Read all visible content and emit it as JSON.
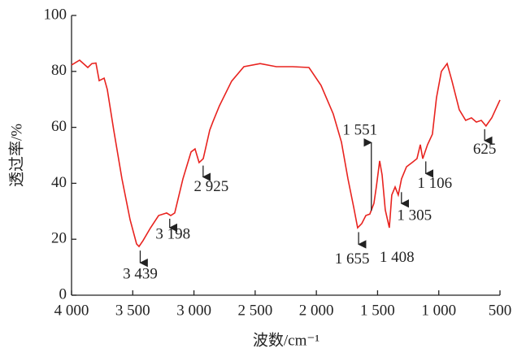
{
  "chart_data": {
    "type": "line",
    "x_label": "波数/cm⁻¹",
    "y_label": "透过率/%",
    "xlim": [
      4000,
      500
    ],
    "ylim": [
      0,
      100
    ],
    "xticks": [
      {
        "value": 4000,
        "label": "4 000"
      },
      {
        "value": 3500,
        "label": "3 500"
      },
      {
        "value": 3000,
        "label": "3 000"
      },
      {
        "value": 2500,
        "label": "2 500"
      },
      {
        "value": 2000,
        "label": "2 000"
      },
      {
        "value": 1500,
        "label": "1 500"
      },
      {
        "value": 1000,
        "label": "1 000"
      },
      500
    ],
    "yticks": [
      0,
      20,
      40,
      60,
      80,
      100
    ],
    "series": [
      {
        "color": "#e8231f",
        "x": [
          4000,
          3934,
          3867,
          3834,
          3801,
          3774,
          3734,
          3708,
          3655,
          3588,
          3522,
          3469,
          3449,
          3416,
          3356,
          3289,
          3223,
          3190,
          3157,
          3090,
          3024,
          2991,
          2958,
          2924,
          2871,
          2845,
          2792,
          2692,
          2592,
          2459,
          2327,
          2194,
          2061,
          1962,
          1862,
          1795,
          1742,
          1695,
          1663,
          1629,
          1596,
          1563,
          1530,
          1510,
          1483,
          1463,
          1437,
          1404,
          1384,
          1357,
          1331,
          1304,
          1264,
          1218,
          1178,
          1151,
          1131,
          1092,
          1052,
          1019,
          979,
          932,
          892,
          833,
          780,
          733,
          693,
          653,
          614,
          567,
          500
        ],
        "values": [
          82.3,
          84,
          81.4,
          82.8,
          83,
          76.7,
          77.6,
          73.5,
          59,
          41.6,
          27,
          18.3,
          17.4,
          19.5,
          24,
          28.5,
          29.4,
          28.5,
          29.4,
          41.6,
          51.2,
          52.3,
          47.4,
          48.8,
          59,
          62,
          67.7,
          76.5,
          81.7,
          82.8,
          81.7,
          81.7,
          81.4,
          75,
          64.8,
          54.7,
          41.6,
          31.4,
          24.1,
          25.6,
          28.5,
          29,
          32.8,
          38.7,
          48,
          43,
          30.5,
          24.1,
          35.8,
          38.7,
          35.8,
          41.6,
          45.9,
          47.4,
          48.8,
          53.8,
          48.8,
          53.8,
          57.6,
          70.6,
          80,
          82.8,
          76.5,
          66.3,
          62.5,
          63.4,
          61.9,
          62.5,
          60.5,
          63.4,
          69.8
        ]
      }
    ],
    "annotations": [
      {
        "text": "3 439",
        "x": 3439,
        "y": 17.4
      },
      {
        "text": "3 198",
        "x": 3198,
        "y": 28.5
      },
      {
        "text": "2 925",
        "x": 2925,
        "y": 47.5
      },
      {
        "text": "1 655",
        "x": 1655,
        "y": 24
      },
      {
        "text": "1 551",
        "x": 1551,
        "y": 29
      },
      {
        "text": "1 408",
        "x": 1408,
        "y": 24
      },
      {
        "text": "1 305",
        "x": 1305,
        "y": 38
      },
      {
        "text": "1 106",
        "x": 1106,
        "y": 49
      },
      {
        "text": "625",
        "x": 625,
        "y": 60.5
      }
    ]
  }
}
